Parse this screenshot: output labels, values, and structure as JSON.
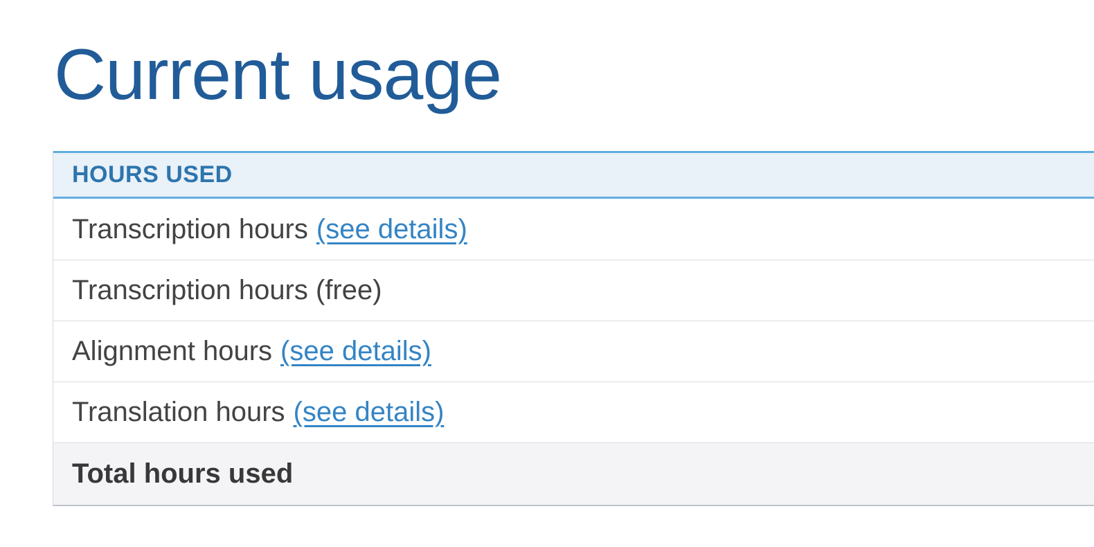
{
  "page": {
    "title": "Current usage"
  },
  "colors": {
    "title": "#215c98",
    "header_text": "#2d75ad",
    "header_bg": "#e9f1f9",
    "header_border": "#62ade0",
    "link": "#3484c4",
    "row_text": "#434343",
    "total_row_bg": "#f4f4f7",
    "row_separator": "#dcdcdc",
    "table_left_border": "#d6d6dc",
    "table_bottom_border": "#bfc3c8"
  },
  "table": {
    "header": "HOURS USED",
    "rows": [
      {
        "label": "Transcription hours",
        "link": "(see details)"
      },
      {
        "label": "Transcription hours (free)"
      },
      {
        "label": "Alignment hours",
        "link": "(see details)"
      },
      {
        "label": "Translation hours",
        "link": "(see details)"
      },
      {
        "label": "Total hours used"
      }
    ]
  }
}
